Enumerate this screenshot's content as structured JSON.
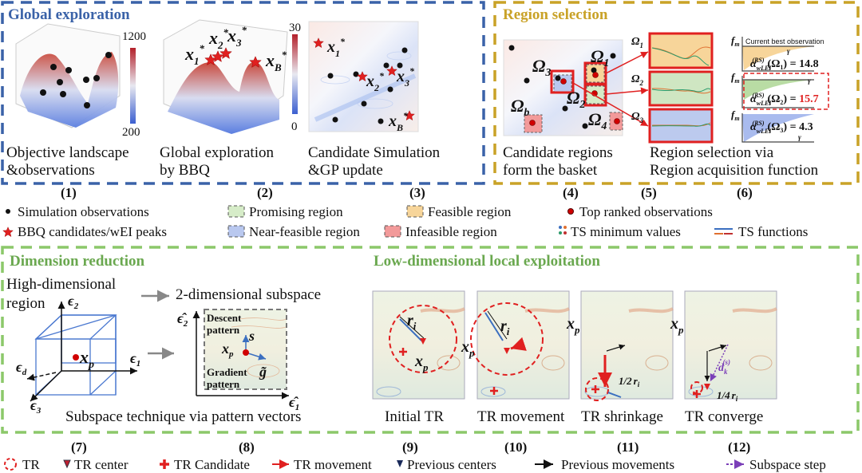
{
  "colors": {
    "global": "#3a62a8",
    "region": "#c9a227",
    "local": "#8cc86a",
    "red": "#e02020",
    "feasible": "#f7d59a",
    "promising": "#d6ecc8",
    "near_feasible": "#b9c8ef",
    "infeasible": "#f29a9a"
  },
  "global": {
    "title": "Global exploration",
    "panel1": {
      "cbar_max": "1200",
      "cbar_min": "200",
      "caption1": "Objective landscape",
      "caption2": "&observations",
      "number": "(1)"
    },
    "panel2": {
      "cbar_max": "30",
      "cbar_min": "0",
      "caption1": "Global exploration",
      "caption2": "by BBQ",
      "number": "(2)",
      "labels": [
        {
          "base": "x",
          "sub": "1",
          "sup": "*"
        },
        {
          "base": "x",
          "sub": "2",
          "sup": "*"
        },
        {
          "base": "x",
          "sub": "3",
          "sup": "*"
        },
        {
          "base": "x",
          "sub": "B",
          "sup": "*"
        }
      ]
    },
    "panel3": {
      "caption1": "Candidate Simulation",
      "caption2": "&GP update",
      "number": "(3)",
      "labels": [
        {
          "base": "x",
          "sub": "1",
          "sup": "*"
        },
        {
          "base": "x",
          "sub": "2",
          "sup": "*"
        },
        {
          "base": "x",
          "sub": "3",
          "sup": "*"
        },
        {
          "base": "x",
          "sub": "B",
          "sup": "*"
        }
      ]
    }
  },
  "region": {
    "title": "Region selection",
    "panel4": {
      "caption1": "Candidate regions",
      "caption2": "form the basket",
      "number": "(4)",
      "labels": [
        {
          "base": "Ω",
          "sub": "1"
        },
        {
          "base": "Ω",
          "sub": "2"
        },
        {
          "base": "Ω",
          "sub": "3"
        },
        {
          "base": "Ω",
          "sub": "4"
        },
        {
          "base": "Ω",
          "sub": "b"
        }
      ]
    },
    "panel5": {
      "caption1": "Region selection via",
      "caption2": "Region acquisition function",
      "number": "(5)",
      "labels": [
        {
          "base": "Ω",
          "sub": "1"
        },
        {
          "base": "Ω",
          "sub": "2"
        },
        {
          "base": "Ω",
          "sub": "3"
        }
      ]
    },
    "panel6": {
      "number": "(6)",
      "fm": "f",
      "fm_sub": "m",
      "gamma": "γ",
      "best_label": "Current best observation",
      "acq": [
        {
          "alpha": "α",
          "sub": "wLEI",
          "sup": "(RS)",
          "arg": "(Ω",
          "arg_sub": "1",
          "close": ") = ",
          "value": "14.8"
        },
        {
          "alpha": "α",
          "sub": "wLEI",
          "sup": "(RS)",
          "arg": "(Ω",
          "arg_sub": "2",
          "close": ") = ",
          "value": "15.7"
        },
        {
          "alpha": "α",
          "sub": "wLEI",
          "sup": "(RS)",
          "arg": "(Ω",
          "arg_sub": "3",
          "close": ") = ",
          "value": "4.3"
        }
      ]
    }
  },
  "legend_top": {
    "row1": [
      "Simulation observations",
      "Promising region",
      "Feasible region",
      "Top ranked observations"
    ],
    "row2": [
      "BBQ candidates/wEI peaks",
      "Near-feasible region",
      "Infeasible region",
      "TS minimum values",
      "TS functions"
    ]
  },
  "dimred": {
    "title": "Dimension reduction",
    "high1": "High-dimensional",
    "high2": "region",
    "sub2d": "2-dimensional subspace",
    "e2": "ϵ",
    "e2s": "2",
    "e1": "ϵ",
    "e1s": "1",
    "ed": "ϵ",
    "eds": "d",
    "e3": "ϵ",
    "e3s": "3",
    "eh2": "ϵ̂",
    "eh2s": "2",
    "eh1": "ϵ̂",
    "eh1s": "1",
    "xp": "x",
    "xps": "p",
    "descent1": "Descent",
    "descent2": "pattern",
    "s": "s",
    "gradient1": "Gradient",
    "gradient2": "pattern",
    "g": "g̃",
    "caption": "Subspace technique via pattern vectors",
    "number7": "(7)",
    "number8": "(8)"
  },
  "local": {
    "title": "Low-dimensional local exploitation",
    "panels": [
      {
        "caption": "Initial TR",
        "number": "(9)"
      },
      {
        "caption": "TR movement",
        "number": "(10)"
      },
      {
        "caption": "TR shrinkage",
        "number": "(11)",
        "frac": "1/2"
      },
      {
        "caption": "TR converge",
        "number": "(12)",
        "frac": "1/4"
      }
    ],
    "r": "r",
    "rs": "i",
    "xp": "x",
    "xps": "p",
    "d": "d",
    "ds": "k",
    "dsup": "(s)"
  },
  "legend_bottom": [
    "TR",
    "TR center",
    "TR Candidate",
    "TR movement",
    "Previous centers",
    "Previous movements",
    "Subspace step"
  ]
}
